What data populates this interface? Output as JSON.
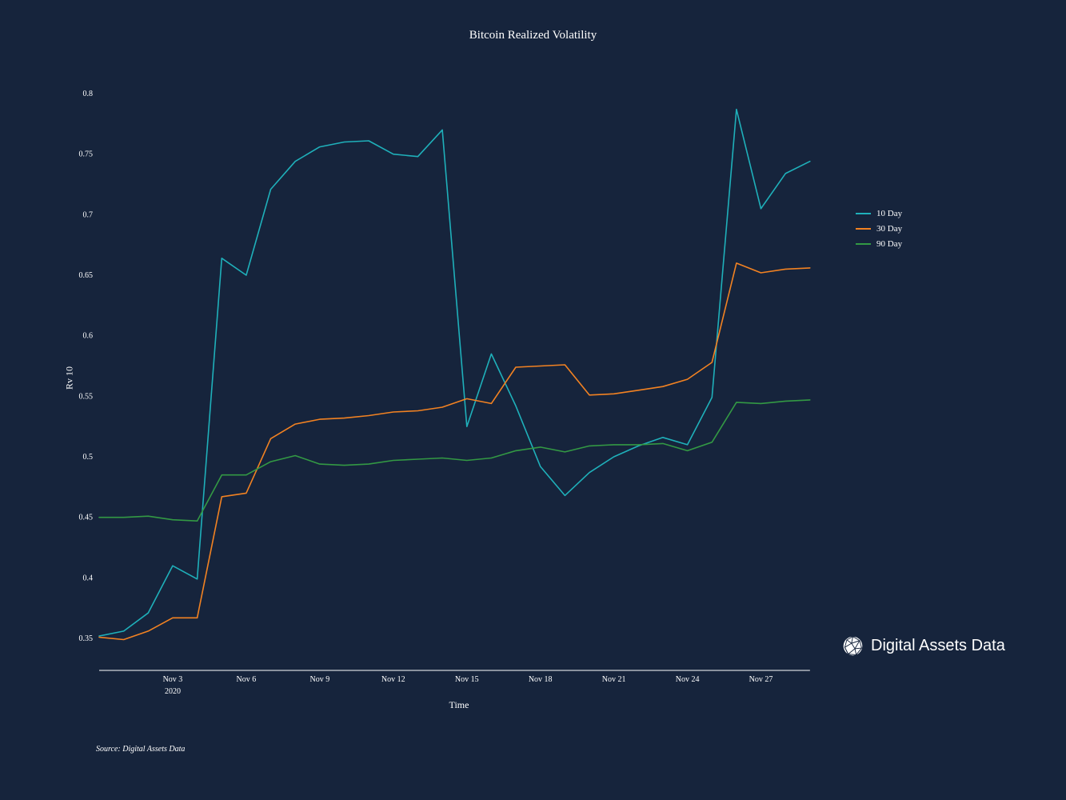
{
  "page": {
    "background": "#16243c"
  },
  "brand": {
    "name": "Digital Assets Data"
  },
  "source_note": "Source: Digital Assets Data",
  "chart_data": {
    "type": "line",
    "title": "Bitcoin Realized Volatility",
    "xlabel": "Time",
    "ylabel": "Rv 10",
    "grid": false,
    "legend_position": "right",
    "ylim": [
      0.3236,
      0.8
    ],
    "axis_color": "#ffffff",
    "x_dates": [
      "Oct 31",
      "Nov 1",
      "Nov 2",
      "Nov 3",
      "Nov 4",
      "Nov 5",
      "Nov 6",
      "Nov 7",
      "Nov 8",
      "Nov 9",
      "Nov 10",
      "Nov 11",
      "Nov 12",
      "Nov 13",
      "Nov 14",
      "Nov 15",
      "Nov 16",
      "Nov 17",
      "Nov 18",
      "Nov 19",
      "Nov 20",
      "Nov 21",
      "Nov 22",
      "Nov 23",
      "Nov 24",
      "Nov 25",
      "Nov 26",
      "Nov 27",
      "Nov 28",
      "Nov 29"
    ],
    "x_ticks": [
      {
        "index": 3,
        "label": "Nov 3",
        "sublabel": "2020"
      },
      {
        "index": 6,
        "label": "Nov 6"
      },
      {
        "index": 9,
        "label": "Nov 9"
      },
      {
        "index": 12,
        "label": "Nov 12"
      },
      {
        "index": 15,
        "label": "Nov 15"
      },
      {
        "index": 18,
        "label": "Nov 18"
      },
      {
        "index": 21,
        "label": "Nov 21"
      },
      {
        "index": 24,
        "label": "Nov 24"
      },
      {
        "index": 27,
        "label": "Nov 27"
      }
    ],
    "y_ticks": [
      {
        "value": 0.35,
        "label": "0.35"
      },
      {
        "value": 0.4,
        "label": "0.4"
      },
      {
        "value": 0.45,
        "label": "0.45"
      },
      {
        "value": 0.5,
        "label": "0.5"
      },
      {
        "value": 0.55,
        "label": "0.55"
      },
      {
        "value": 0.6,
        "label": "0.6"
      },
      {
        "value": 0.65,
        "label": "0.65"
      },
      {
        "value": 0.7,
        "label": "0.7"
      },
      {
        "value": 0.75,
        "label": "0.75"
      },
      {
        "value": 0.8,
        "label": "0.8"
      }
    ],
    "series": [
      {
        "name": "10 Day",
        "color": "#1fb0ba",
        "values": [
          0.352,
          0.356,
          0.371,
          0.41,
          0.399,
          0.664,
          0.65,
          0.721,
          0.744,
          0.756,
          0.76,
          0.761,
          0.75,
          0.748,
          0.77,
          0.525,
          0.585,
          0.542,
          0.492,
          0.468,
          0.487,
          0.5,
          0.509,
          0.516,
          0.51,
          0.549,
          0.787,
          0.705,
          0.734,
          0.744
        ]
      },
      {
        "name": "30 Day",
        "color": "#f28222",
        "values": [
          0.351,
          0.349,
          0.356,
          0.367,
          0.367,
          0.467,
          0.47,
          0.515,
          0.527,
          0.531,
          0.532,
          0.534,
          0.537,
          0.538,
          0.541,
          0.548,
          0.544,
          0.574,
          0.575,
          0.576,
          0.551,
          0.552,
          0.555,
          0.558,
          0.564,
          0.578,
          0.66,
          0.652,
          0.655,
          0.656
        ]
      },
      {
        "name": "90 Day",
        "color": "#339944",
        "values": [
          0.45,
          0.45,
          0.451,
          0.448,
          0.447,
          0.485,
          0.485,
          0.496,
          0.501,
          0.494,
          0.493,
          0.494,
          0.497,
          0.498,
          0.499,
          0.497,
          0.499,
          0.505,
          0.508,
          0.504,
          0.509,
          0.51,
          0.51,
          0.511,
          0.505,
          0.512,
          0.545,
          0.544,
          0.546,
          0.547
        ]
      }
    ]
  }
}
